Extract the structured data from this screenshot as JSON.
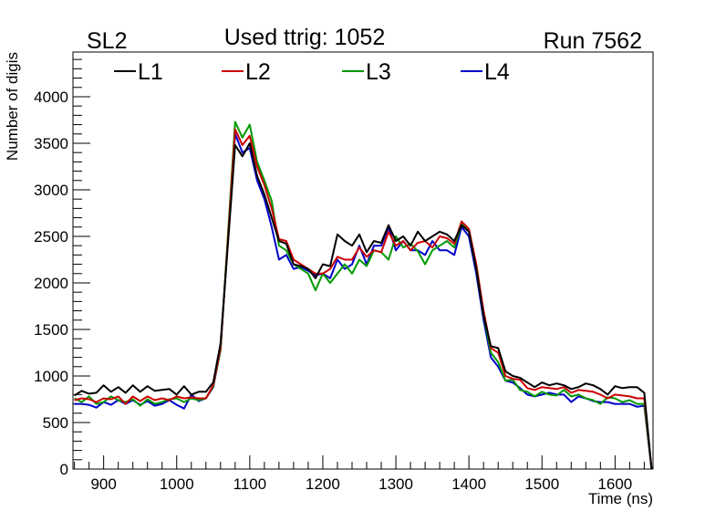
{
  "chart_data": {
    "type": "line",
    "header_left": "SL2",
    "title": "Used ttrig: 1052",
    "header_right": "Run 7562",
    "xlabel": "Time (ns)",
    "ylabel": "Number of digis",
    "xlim": [
      858,
      1652
    ],
    "ylim": [
      0,
      4480
    ],
    "x_ticks": [
      900,
      1000,
      1100,
      1200,
      1300,
      1400,
      1500,
      1600
    ],
    "y_ticks": [
      0,
      500,
      1000,
      1500,
      2000,
      2500,
      3000,
      3500,
      4000
    ],
    "legend_position": "top",
    "x": [
      860,
      870,
      880,
      890,
      900,
      910,
      920,
      930,
      940,
      950,
      960,
      970,
      980,
      990,
      1000,
      1010,
      1020,
      1030,
      1040,
      1050,
      1060,
      1070,
      1080,
      1090,
      1100,
      1110,
      1120,
      1130,
      1140,
      1150,
      1160,
      1170,
      1180,
      1190,
      1200,
      1210,
      1220,
      1230,
      1240,
      1250,
      1260,
      1270,
      1280,
      1290,
      1300,
      1310,
      1320,
      1330,
      1340,
      1350,
      1360,
      1370,
      1380,
      1390,
      1400,
      1410,
      1420,
      1430,
      1440,
      1450,
      1460,
      1470,
      1480,
      1490,
      1500,
      1510,
      1520,
      1530,
      1540,
      1550,
      1560,
      1570,
      1580,
      1590,
      1600,
      1610,
      1620,
      1630,
      1640,
      1650
    ],
    "series": [
      {
        "name": "L1",
        "color": "#000000",
        "values": [
          790,
          840,
          810,
          820,
          900,
          830,
          880,
          820,
          900,
          830,
          890,
          840,
          850,
          860,
          800,
          890,
          800,
          830,
          830,
          930,
          1350,
          2400,
          3480,
          3360,
          3500,
          3150,
          2950,
          2700,
          2450,
          2420,
          2200,
          2180,
          2150,
          2050,
          2200,
          2180,
          2520,
          2450,
          2400,
          2520,
          2330,
          2450,
          2430,
          2620,
          2450,
          2500,
          2400,
          2550,
          2450,
          2500,
          2550,
          2520,
          2450,
          2620,
          2550,
          2150,
          1650,
          1320,
          1300,
          1050,
          1000,
          980,
          930,
          880,
          930,
          900,
          920,
          900,
          860,
          880,
          920,
          900,
          860,
          800,
          890,
          870,
          880,
          880,
          820,
          0
        ]
      },
      {
        "name": "L2",
        "color": "#cc0000",
        "values": [
          740,
          760,
          750,
          720,
          760,
          750,
          780,
          700,
          780,
          730,
          780,
          740,
          760,
          740,
          780,
          760,
          770,
          760,
          760,
          900,
          1300,
          2450,
          3650,
          3480,
          3580,
          3250,
          3050,
          2800,
          2470,
          2450,
          2250,
          2200,
          2150,
          2100,
          2100,
          2150,
          2280,
          2250,
          2250,
          2380,
          2280,
          2350,
          2330,
          2550,
          2400,
          2450,
          2350,
          2430,
          2450,
          2380,
          2500,
          2480,
          2420,
          2660,
          2580,
          2200,
          1700,
          1300,
          1250,
          1000,
          970,
          960,
          870,
          850,
          880,
          870,
          860,
          880,
          820,
          850,
          840,
          830,
          800,
          760,
          800,
          790,
          780,
          760,
          760,
          0
        ]
      },
      {
        "name": "L3",
        "color": "#009900",
        "values": [
          760,
          720,
          780,
          700,
          720,
          780,
          740,
          720,
          750,
          680,
          750,
          700,
          720,
          750,
          760,
          720,
          760,
          740,
          760,
          890,
          1280,
          2500,
          3730,
          3560,
          3700,
          3300,
          3100,
          2880,
          2400,
          2350,
          2200,
          2150,
          2100,
          1920,
          2100,
          2000,
          2100,
          2200,
          2100,
          2250,
          2180,
          2350,
          2330,
          2250,
          2500,
          2380,
          2420,
          2340,
          2200,
          2350,
          2400,
          2450,
          2380,
          2630,
          2560,
          2150,
          1650,
          1250,
          1150,
          950,
          960,
          850,
          830,
          780,
          830,
          800,
          790,
          850,
          780,
          800,
          760,
          740,
          700,
          770,
          760,
          720,
          740,
          700,
          700,
          0
        ]
      },
      {
        "name": "L4",
        "color": "#0000cc",
        "values": [
          700,
          700,
          690,
          660,
          720,
          690,
          740,
          700,
          740,
          690,
          730,
          680,
          700,
          740,
          690,
          650,
          800,
          730,
          760,
          880,
          1280,
          2450,
          3600,
          3400,
          3450,
          3100,
          2900,
          2600,
          2250,
          2300,
          2150,
          2170,
          2130,
          2080,
          2100,
          2050,
          2250,
          2150,
          2200,
          2400,
          2200,
          2400,
          2400,
          2600,
          2350,
          2450,
          2350,
          2350,
          2300,
          2450,
          2350,
          2350,
          2300,
          2600,
          2500,
          2100,
          1600,
          1200,
          1100,
          950,
          930,
          870,
          800,
          780,
          800,
          820,
          800,
          800,
          720,
          780,
          760,
          730,
          720,
          720,
          700,
          700,
          700,
          670,
          680,
          0
        ]
      }
    ]
  }
}
